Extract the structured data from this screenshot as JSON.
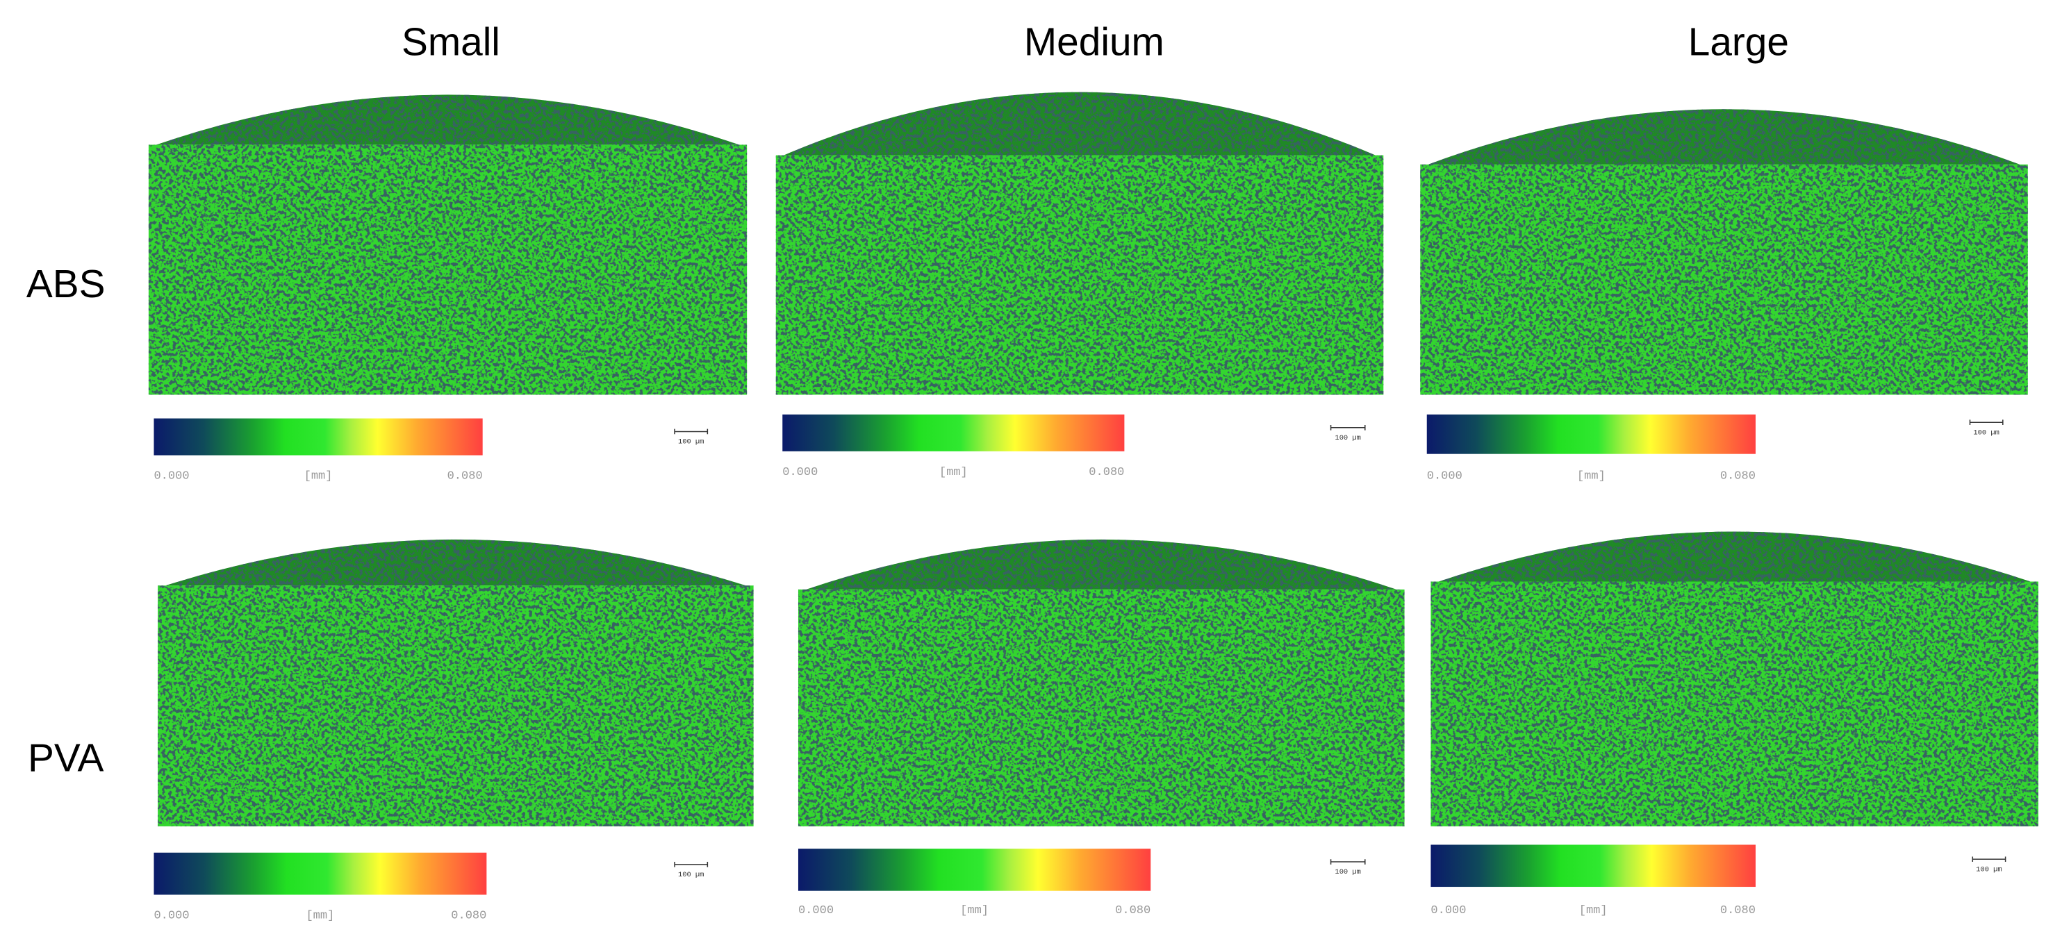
{
  "columns": [
    "Small",
    "Medium",
    "Large"
  ],
  "rows": [
    "ABS",
    "PVA"
  ],
  "panels": [
    {
      "colorbar_min": "0.000",
      "colorbar_unit": "[mm]",
      "colorbar_max": "0.080",
      "scale_bar": "100 µm"
    },
    {
      "colorbar_min": "0.000",
      "colorbar_unit": "[mm]",
      "colorbar_max": "0.080",
      "scale_bar": "100 µm"
    },
    {
      "colorbar_min": "0.000",
      "colorbar_unit": "[mm]",
      "colorbar_max": "0.080",
      "scale_bar": "100 µm"
    },
    {
      "colorbar_min": "0.000",
      "colorbar_unit": "[mm]",
      "colorbar_max": "0.080",
      "scale_bar": "100 µm"
    },
    {
      "colorbar_min": "0.000",
      "colorbar_unit": "[mm]",
      "colorbar_max": "0.080",
      "scale_bar": "100 µm"
    },
    {
      "colorbar_min": "0.000",
      "colorbar_unit": "[mm]",
      "colorbar_max": "0.080",
      "scale_bar": "100 µm"
    }
  ]
}
